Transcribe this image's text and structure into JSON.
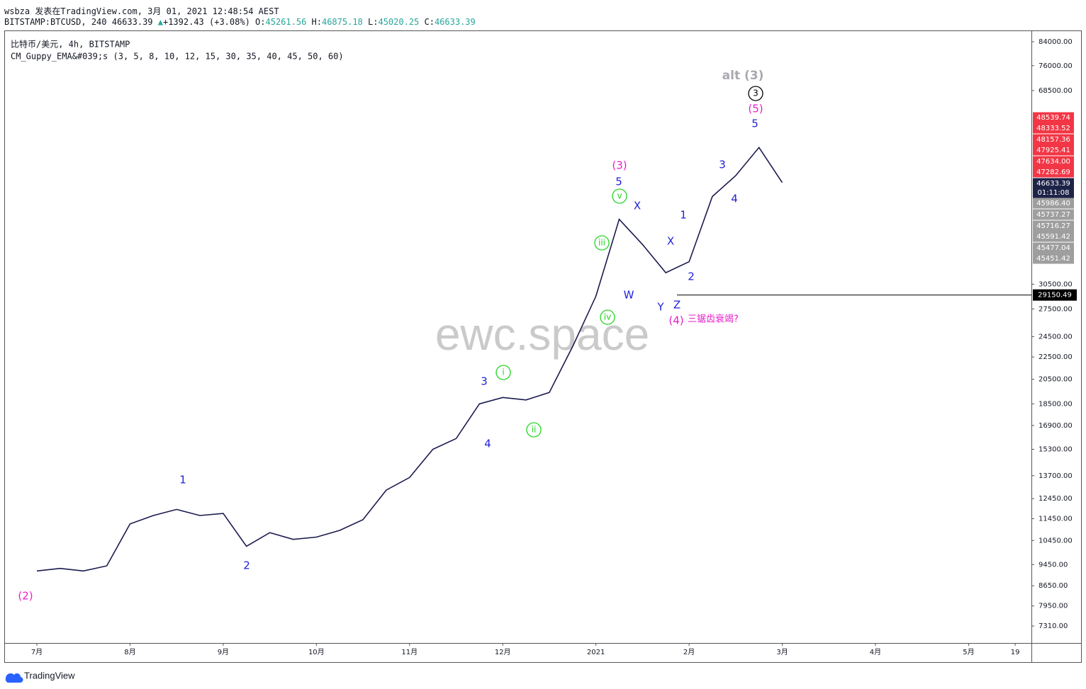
{
  "header": {
    "line1": "wsbza 发表在TradingView.com, 3月 01, 2021 12:48:54 AEST",
    "line2": [
      {
        "text": "BITSTAMP:BTCUSD, 240 46633.39",
        "color": "#131722"
      },
      {
        "text": "▲",
        "color": "#26a69a"
      },
      {
        "text": "+1392.43 (+3.08%)",
        "color": "#131722"
      },
      {
        "text": "O:",
        "color": "#131722"
      },
      {
        "text": "45261.56",
        "color": "#26a69a"
      },
      {
        "text": "H:",
        "color": "#131722"
      },
      {
        "text": "46875.18",
        "color": "#26a69a"
      },
      {
        "text": "L:",
        "color": "#131722"
      },
      {
        "text": "45020.25",
        "color": "#26a69a"
      },
      {
        "text": "C:",
        "color": "#131722"
      },
      {
        "text": "46633.39",
        "color": "#26a69a"
      }
    ],
    "symbol": "比特币/美元, 4h, BITSTAMP",
    "indicator": "CM_Guppy_EMA&#039;s (3, 5, 8, 10, 12, 15, 30, 35, 40, 45, 50, 60)"
  },
  "chart_data": {
    "type": "line",
    "categories": [
      "7月",
      null,
      null,
      null,
      "8月",
      null,
      null,
      null,
      "9月",
      null,
      null,
      null,
      "10月",
      null,
      null,
      null,
      "11月",
      null,
      null,
      null,
      "12月",
      null,
      null,
      null,
      "2021",
      null,
      null,
      null,
      "2月",
      null,
      null,
      null,
      "3月",
      null,
      null,
      null,
      "4月",
      null,
      null,
      null,
      "5月",
      null,
      "19"
    ],
    "series": [
      {
        "name": "BTCUSD",
        "color": "#1a1a4e",
        "values": [
          9200,
          9300,
          9200,
          9400,
          11200,
          11600,
          11900,
          11600,
          11700,
          10200,
          10800,
          10500,
          10600,
          10900,
          11400,
          12900,
          13600,
          15300,
          16000,
          18500,
          19000,
          18800,
          19400,
          23500,
          29000,
          40000,
          36000,
          32000,
          33500,
          44000,
          48000,
          54000,
          46633.39,
          null,
          null,
          null,
          null,
          null,
          null,
          null,
          null,
          null,
          null
        ]
      }
    ],
    "log_scale": true,
    "ylim": [
      6810,
      87800
    ],
    "yticks": [
      {
        "value": 84000,
        "label": "84000.00"
      },
      {
        "value": 76000,
        "label": "76000.00"
      },
      {
        "value": 68500,
        "label": "68500.00"
      },
      {
        "value": 30500,
        "label": "30500.00"
      },
      {
        "value": 27500,
        "label": "27500.00"
      },
      {
        "value": 24500,
        "label": "24500.00"
      },
      {
        "value": 22500,
        "label": "22500.00"
      },
      {
        "value": 20500,
        "label": "20500.00"
      },
      {
        "value": 18500,
        "label": "18500.00"
      },
      {
        "value": 16900,
        "label": "16900.00"
      },
      {
        "value": 15300,
        "label": "15300.00"
      },
      {
        "value": 13700,
        "label": "13700.00"
      },
      {
        "value": 12450,
        "label": "12450.00"
      },
      {
        "value": 11450,
        "label": "11450.00"
      },
      {
        "value": 10450,
        "label": "10450.00"
      },
      {
        "value": 9450,
        "label": "9450.00"
      },
      {
        "value": 8650,
        "label": "8650.00"
      },
      {
        "value": 7950,
        "label": "7950.00"
      },
      {
        "value": 7310,
        "label": "7310.00"
      }
    ],
    "hline": {
      "value": 29150.49,
      "label": "29150.49"
    },
    "price_tags": [
      {
        "text": "48539.74",
        "color": "#f23645"
      },
      {
        "text": "48333.52",
        "color": "#f23645"
      },
      {
        "text": "48157.36",
        "color": "#f23645"
      },
      {
        "text": "47925.41",
        "color": "#f23645"
      },
      {
        "text": "47634.00",
        "color": "#f23645"
      },
      {
        "text": "47282.69",
        "color": "#f23645"
      },
      {
        "text": "46633.39",
        "color": "#1e2348"
      },
      {
        "text": "01:11:08",
        "color": "#1e2348"
      },
      {
        "text": "45986.40",
        "color": "#9e9e9e"
      },
      {
        "text": "45737.27",
        "color": "#9e9e9e"
      },
      {
        "text": "45716.27",
        "color": "#9e9e9e"
      },
      {
        "text": "45591.42",
        "color": "#9e9e9e"
      },
      {
        "text": "45477.04",
        "color": "#9e9e9e"
      },
      {
        "text": "45451.42",
        "color": "#9e9e9e"
      }
    ],
    "annotations": [
      {
        "text": "(2)",
        "color": "#e91ec8"
      },
      {
        "text": "1",
        "color": "#2121d9"
      },
      {
        "text": "2",
        "color": "#2121d9"
      },
      {
        "text": "3",
        "color": "#2121d9"
      },
      {
        "text": "4",
        "color": "#2121d9"
      },
      {
        "text": "i",
        "color": "#22d422",
        "circled": true
      },
      {
        "text": "ii",
        "color": "#22d422",
        "circled": true
      },
      {
        "text": "iii",
        "color": "#22d422",
        "circled": true
      },
      {
        "text": "iv",
        "color": "#22d422",
        "circled": true
      },
      {
        "text": "v",
        "color": "#22d422",
        "circled": true
      },
      {
        "text": "5",
        "color": "#2121d9"
      },
      {
        "text": "(3)",
        "color": "#e91ec8"
      },
      {
        "text": "X",
        "color": "#2121d9"
      },
      {
        "text": "W",
        "color": "#2121d9"
      },
      {
        "text": "X",
        "color": "#2121d9"
      },
      {
        "text": "Y",
        "color": "#2121d9"
      },
      {
        "text": "Z",
        "color": "#2121d9"
      },
      {
        "text": "(4)",
        "color": "#e91ec8"
      },
      {
        "text": "三锯齿衰竭?",
        "color": "#e91ec8"
      },
      {
        "text": "1",
        "color": "#2121d9"
      },
      {
        "text": "2",
        "color": "#2121d9"
      },
      {
        "text": "3",
        "color": "#2121d9"
      },
      {
        "text": "4",
        "color": "#2121d9"
      },
      {
        "text": "5",
        "color": "#2121d9"
      },
      {
        "text": "(5)",
        "color": "#e91ec8"
      },
      {
        "text": "3",
        "color": "#000000",
        "circled": true
      },
      {
        "text": "alt (3)",
        "color": "#a8a8b0"
      }
    ],
    "watermark": "ewc.space"
  },
  "footer": "TradingView"
}
